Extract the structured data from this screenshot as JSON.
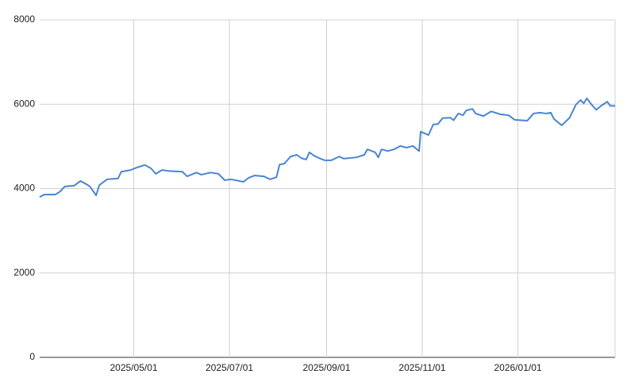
{
  "chart_data": {
    "type": "line",
    "x": [
      "2025/03/02",
      "2025/03/05",
      "2025/03/12",
      "2025/03/15",
      "2025/03/18",
      "2025/03/24",
      "2025/03/28",
      "2025/04/01",
      "2025/04/03",
      "2025/04/07",
      "2025/04/09",
      "2025/04/14",
      "2025/04/21",
      "2025/04/23",
      "2025/04/29",
      "2025/05/03",
      "2025/05/08",
      "2025/05/12",
      "2025/05/15",
      "2025/05/19",
      "2025/05/23",
      "2025/06/01",
      "2025/06/04",
      "2025/06/10",
      "2025/06/13",
      "2025/06/19",
      "2025/06/24",
      "2025/06/28",
      "2025/07/02",
      "2025/07/10",
      "2025/07/13",
      "2025/07/17",
      "2025/07/23",
      "2025/07/27",
      "2025/07/31",
      "2025/08/02",
      "2025/08/05",
      "2025/08/09",
      "2025/08/13",
      "2025/08/16",
      "2025/08/19",
      "2025/08/21",
      "2025/08/24",
      "2025/08/28",
      "2025/08/31",
      "2025/09/04",
      "2025/09/09",
      "2025/09/12",
      "2025/09/20",
      "2025/09/25",
      "2025/09/27",
      "2025/10/02",
      "2025/10/04",
      "2025/10/06",
      "2025/10/10",
      "2025/10/14",
      "2025/10/18",
      "2025/10/22",
      "2025/10/26",
      "2025/10/30",
      "2025/10/31",
      "2025/11/05",
      "2025/11/08",
      "2025/11/11",
      "2025/11/14",
      "2025/11/19",
      "2025/11/21",
      "2025/11/24",
      "2025/11/27",
      "2025/11/29",
      "2025/12/03",
      "2025/12/05",
      "2025/12/10",
      "2025/12/15",
      "2025/12/21",
      "2025/12/26",
      "2025/12/30",
      "2026/01/07",
      "2026/01/11",
      "2026/01/15",
      "2026/01/19",
      "2026/01/22",
      "2026/01/24",
      "2026/01/29",
      "2026/02/03",
      "2026/02/07",
      "2026/02/10",
      "2026/02/12",
      "2026/02/14",
      "2026/02/17",
      "2026/02/20",
      "2026/02/23",
      "2026/02/27",
      "2026/03/01",
      "2026/03/04"
    ],
    "series": [
      {
        "color": "#4a86d0",
        "values": [
          3800,
          3860,
          3860,
          3930,
          4050,
          4070,
          4180,
          4100,
          4050,
          3840,
          4080,
          4220,
          4240,
          4400,
          4440,
          4500,
          4560,
          4480,
          4350,
          4440,
          4420,
          4400,
          4290,
          4380,
          4330,
          4380,
          4350,
          4200,
          4220,
          4160,
          4250,
          4310,
          4290,
          4220,
          4270,
          4570,
          4590,
          4760,
          4800,
          4720,
          4690,
          4860,
          4780,
          4710,
          4670,
          4670,
          4760,
          4710,
          4740,
          4800,
          4930,
          4860,
          4740,
          4930,
          4890,
          4930,
          5010,
          4970,
          5010,
          4890,
          5350,
          5270,
          5520,
          5530,
          5670,
          5680,
          5620,
          5780,
          5740,
          5850,
          5890,
          5780,
          5720,
          5830,
          5760,
          5740,
          5630,
          5610,
          5780,
          5800,
          5780,
          5800,
          5650,
          5500,
          5680,
          5990,
          6100,
          6020,
          6140,
          5990,
          5870,
          5960,
          6060,
          5960,
          5960
        ]
      }
    ],
    "xlim": [
      "2025/03/02",
      "2026/03/04"
    ],
    "xticks": [
      "2025/05/01",
      "2025/07/01",
      "2025/09/01",
      "2025/11/01",
      "2026/01/01"
    ],
    "ylim": [
      0,
      8000
    ],
    "yticks": [
      0,
      2000,
      4000,
      6000,
      8000
    ],
    "grid": true
  }
}
